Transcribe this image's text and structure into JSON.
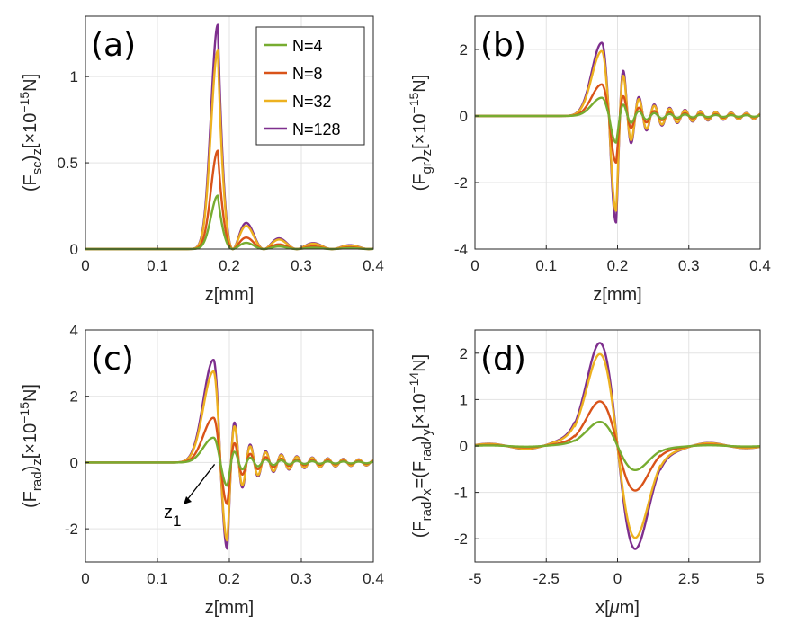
{
  "legend": {
    "entries": [
      {
        "label": "N=4",
        "color": "#77AC30"
      },
      {
        "label": "N=8",
        "color": "#D95319"
      },
      {
        "label": "N=32",
        "color": "#EDB120"
      },
      {
        "label": "N=128",
        "color": "#7E2F8E"
      }
    ]
  },
  "chart_data": [
    {
      "panel": "(a)",
      "type": "line",
      "xlabel": "z[mm]",
      "ylabel": {
        "base": "(F",
        "sub": "sc",
        "mid": ")",
        "sub2": "z",
        "tail": "[×10",
        "sup": "−15",
        "end": "N]"
      },
      "xlim": [
        0,
        0.4
      ],
      "ylim": [
        0,
        1.35
      ],
      "xticks": [
        0,
        0.1,
        0.2,
        0.3,
        0.4
      ],
      "xtick_labels": [
        "0",
        "0.1",
        "0.2",
        "0.3",
        "0.4"
      ],
      "yticks": [
        0,
        0.5,
        1
      ],
      "ytick_labels": [
        "0",
        "0.5",
        "1"
      ],
      "kind": "sc",
      "peak_z_mm": 0.184,
      "series": [
        {
          "name": "N=4",
          "peak": 0.31
        },
        {
          "name": "N=8",
          "peak": 0.57
        },
        {
          "name": "N=32",
          "peak": 1.15
        },
        {
          "name": "N=128",
          "peak": 1.3
        }
      ],
      "legend_location": "top-right"
    },
    {
      "panel": "(b)",
      "type": "line",
      "xlabel": "z[mm]",
      "ylabel": {
        "base": "(F",
        "sub": "gr",
        "mid": ")",
        "sub2": "z",
        "tail": "[×10",
        "sup": "−15",
        "end": "N]"
      },
      "xlim": [
        0,
        0.4
      ],
      "ylim": [
        -4,
        3
      ],
      "xticks": [
        0,
        0.1,
        0.2,
        0.3,
        0.4
      ],
      "xtick_labels": [
        "0",
        "0.1",
        "0.2",
        "0.3",
        "0.4"
      ],
      "yticks": [
        -4,
        -2,
        0,
        2
      ],
      "ytick_labels": [
        "-4",
        "-2",
        "0",
        "2"
      ],
      "kind": "gr",
      "series": [
        {
          "name": "N=4",
          "max": 0.55,
          "min": -0.8
        },
        {
          "name": "N=8",
          "max": 0.95,
          "min": -1.4
        },
        {
          "name": "N=32",
          "max": 1.95,
          "min": -2.85
        },
        {
          "name": "N=128",
          "max": 2.2,
          "min": -3.2
        }
      ]
    },
    {
      "panel": "(c)",
      "type": "line",
      "xlabel": "z[mm]",
      "ylabel": {
        "base": "(F",
        "sub": "rad",
        "mid": ")",
        "sub2": "z",
        "tail": "[×10",
        "sup": "−15",
        "end": "N]"
      },
      "xlim": [
        0,
        0.4
      ],
      "ylim": [
        -3,
        4
      ],
      "xticks": [
        0,
        0.1,
        0.2,
        0.3,
        0.4
      ],
      "xtick_labels": [
        "0",
        "0.1",
        "0.2",
        "0.3",
        "0.4"
      ],
      "yticks": [
        -2,
        0,
        2,
        4
      ],
      "ytick_labels": [
        "-2",
        "0",
        "2",
        "4"
      ],
      "kind": "rad",
      "series": [
        {
          "name": "N=4",
          "max": 0.75,
          "min": -0.7
        },
        {
          "name": "N=8",
          "max": 1.35,
          "min": -1.25
        },
        {
          "name": "N=32",
          "max": 2.75,
          "min": -2.35
        },
        {
          "name": "N=128",
          "max": 3.1,
          "min": -2.6
        }
      ],
      "annotation": {
        "text": "z",
        "sub": "1",
        "z_mm": 0.182,
        "value": 0
      }
    },
    {
      "panel": "(d)",
      "type": "line",
      "xlabel": {
        "base": "x[",
        "greek": "μ",
        "tail": "m]"
      },
      "ylabel": {
        "base": "(F",
        "sub": "rad",
        "mid": ")",
        "sub2": "x",
        "mid2": "=(F",
        "sub3": "rad",
        "mid3": ")",
        "sub4": "y",
        "tail": "[×10",
        "sup": "−14",
        "end": "N]"
      },
      "xlim": [
        -5,
        5
      ],
      "ylim": [
        -2.5,
        2.5
      ],
      "xticks": [
        -5,
        -2.5,
        0,
        2.5,
        5
      ],
      "xtick_labels": [
        "-5",
        "-2.5",
        "0",
        "2.5",
        "5"
      ],
      "yticks": [
        -2,
        -1,
        0,
        1,
        2
      ],
      "ytick_labels": [
        "-2",
        "-1",
        "0",
        "1",
        "2"
      ],
      "kind": "xy",
      "series": [
        {
          "name": "N=4",
          "amplitude": 0.52
        },
        {
          "name": "N=8",
          "amplitude": 0.96
        },
        {
          "name": "N=32",
          "amplitude": 1.98
        },
        {
          "name": "N=128",
          "amplitude": 2.22
        }
      ]
    }
  ]
}
